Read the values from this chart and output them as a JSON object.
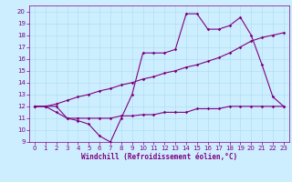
{
  "xlabel": "Windchill (Refroidissement éolien,°C)",
  "bg_color": "#cceeff",
  "line_color": "#800080",
  "grid_color": "#aaddee",
  "xlim": [
    -0.5,
    23.5
  ],
  "ylim": [
    9,
    20.5
  ],
  "xticks": [
    0,
    1,
    2,
    3,
    4,
    5,
    6,
    7,
    8,
    9,
    10,
    11,
    12,
    13,
    14,
    15,
    16,
    17,
    18,
    19,
    20,
    21,
    22,
    23
  ],
  "yticks": [
    9,
    10,
    11,
    12,
    13,
    14,
    15,
    16,
    17,
    18,
    19,
    20
  ],
  "line1_x": [
    0,
    1,
    2,
    3,
    4,
    5,
    6,
    7,
    8,
    9,
    10,
    11,
    12,
    13,
    14,
    15,
    16,
    17,
    18,
    19,
    20,
    21,
    22,
    23
  ],
  "line1_y": [
    12,
    12,
    12,
    11,
    10.8,
    10.5,
    9.5,
    9,
    11,
    13,
    16.5,
    16.5,
    16.5,
    16.8,
    19.8,
    19.8,
    18.5,
    18.5,
    18.8,
    19.5,
    18,
    15.5,
    12.8,
    12
  ],
  "line2_x": [
    0,
    1,
    2,
    3,
    4,
    5,
    6,
    7,
    8,
    9,
    10,
    11,
    12,
    13,
    14,
    15,
    16,
    17,
    18,
    19,
    20,
    21,
    22,
    23
  ],
  "line2_y": [
    12,
    12,
    12.2,
    12.5,
    12.8,
    13.0,
    13.3,
    13.5,
    13.8,
    14.0,
    14.3,
    14.5,
    14.8,
    15.0,
    15.3,
    15.5,
    15.8,
    16.1,
    16.5,
    17.0,
    17.5,
    17.8,
    18.0,
    18.2
  ],
  "line3_x": [
    0,
    1,
    2,
    3,
    4,
    5,
    6,
    7,
    8,
    9,
    10,
    11,
    12,
    13,
    14,
    15,
    16,
    17,
    18,
    19,
    20,
    21,
    22,
    23
  ],
  "line3_y": [
    12,
    12,
    11.5,
    11.0,
    11.0,
    11.0,
    11.0,
    11.0,
    11.2,
    11.2,
    11.3,
    11.3,
    11.5,
    11.5,
    11.5,
    11.8,
    11.8,
    11.8,
    12.0,
    12.0,
    12.0,
    12.0,
    12.0,
    12.0
  ],
  "xlabel_fontsize": 5.5,
  "tick_fontsize": 5,
  "marker_size": 1.8,
  "linewidth": 0.8
}
